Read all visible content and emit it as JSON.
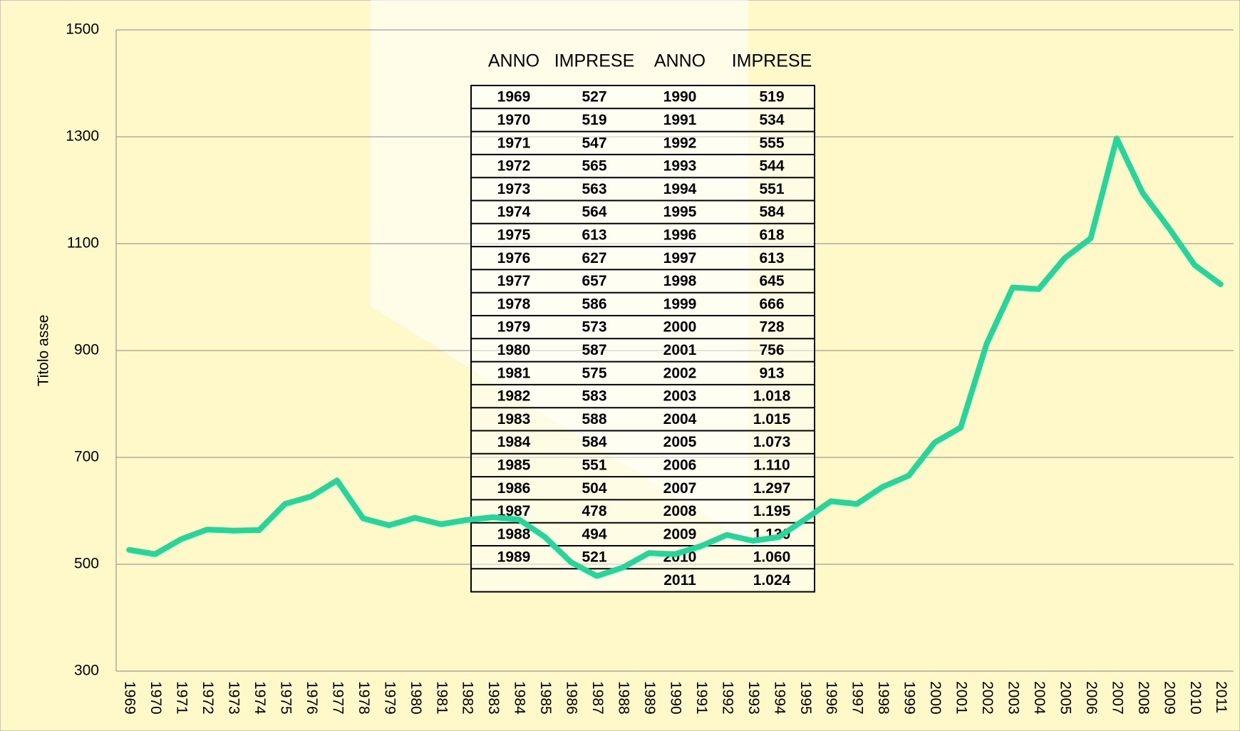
{
  "chart_data": {
    "type": "line",
    "y_label": "Titolo asse",
    "categories": [
      "1969",
      "1970",
      "1971",
      "1972",
      "1973",
      "1974",
      "1975",
      "1976",
      "1977",
      "1978",
      "1979",
      "1980",
      "1981",
      "1982",
      "1983",
      "1984",
      "1985",
      "1986",
      "1987",
      "1988",
      "1989",
      "1990",
      "1991",
      "1992",
      "1993",
      "1994",
      "1995",
      "1996",
      "1997",
      "1998",
      "1999",
      "2000",
      "2001",
      "2002",
      "2003",
      "2004",
      "2005",
      "2006",
      "2007",
      "2008",
      "2009",
      "2010",
      "2011"
    ],
    "values": [
      527,
      519,
      547,
      565,
      563,
      564,
      613,
      627,
      657,
      586,
      573,
      587,
      575,
      583,
      588,
      584,
      551,
      504,
      478,
      494,
      521,
      519,
      534,
      555,
      544,
      551,
      584,
      618,
      613,
      645,
      666,
      728,
      756,
      913,
      1018,
      1015,
      1073,
      1110,
      1297,
      1195,
      1130,
      1060,
      1024
    ],
    "value_labels": [
      "527",
      "519",
      "547",
      "565",
      "563",
      "564",
      "613",
      "627",
      "657",
      "586",
      "573",
      "587",
      "575",
      "583",
      "588",
      "584",
      "551",
      "504",
      "478",
      "494",
      "521",
      "519",
      "534",
      "555",
      "544",
      "551",
      "584",
      "618",
      "613",
      "645",
      "666",
      "728",
      "756",
      "913",
      "1.018",
      "1.015",
      "1.073",
      "1.110",
      "1.297",
      "1.195",
      "1.130",
      "1.060",
      "1.024"
    ],
    "color": "#22d69c",
    "ylim": [
      300,
      1500
    ],
    "yticks": [
      300,
      500,
      700,
      900,
      1100,
      1300,
      1500
    ],
    "grid": true,
    "table_header": [
      "ANNO",
      "IMPRESE",
      "ANNO",
      "IMPRESE"
    ]
  }
}
